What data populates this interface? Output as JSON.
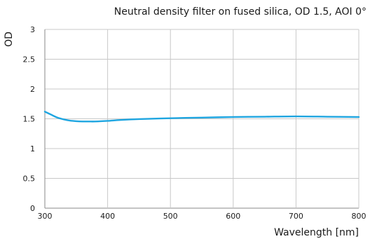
{
  "chart_data": {
    "type": "line",
    "title": "Neutral density filter on fused silica, OD 1.5, AOI 0°",
    "xlabel": "Wavelength [nm]",
    "ylabel": "OD",
    "xlim": [
      300,
      800
    ],
    "ylim": [
      0,
      3
    ],
    "xticks": [
      300,
      400,
      500,
      600,
      700,
      800
    ],
    "yticks": [
      0,
      0.5,
      1,
      1.5,
      2,
      2.5,
      3
    ],
    "ytick_labels": [
      "0",
      "0.5",
      "1",
      "1.5",
      "2",
      "2.5",
      "3"
    ],
    "grid": true,
    "series": [
      {
        "color": "#1ea5e0",
        "x": [
          300,
          310,
          320,
          330,
          340,
          350,
          360,
          370,
          380,
          400,
          420,
          450,
          500,
          550,
          600,
          650,
          700,
          750,
          800
        ],
        "y": [
          1.62,
          1.57,
          1.52,
          1.49,
          1.47,
          1.46,
          1.455,
          1.455,
          1.455,
          1.465,
          1.48,
          1.495,
          1.51,
          1.52,
          1.53,
          1.535,
          1.54,
          1.535,
          1.53
        ]
      }
    ]
  }
}
